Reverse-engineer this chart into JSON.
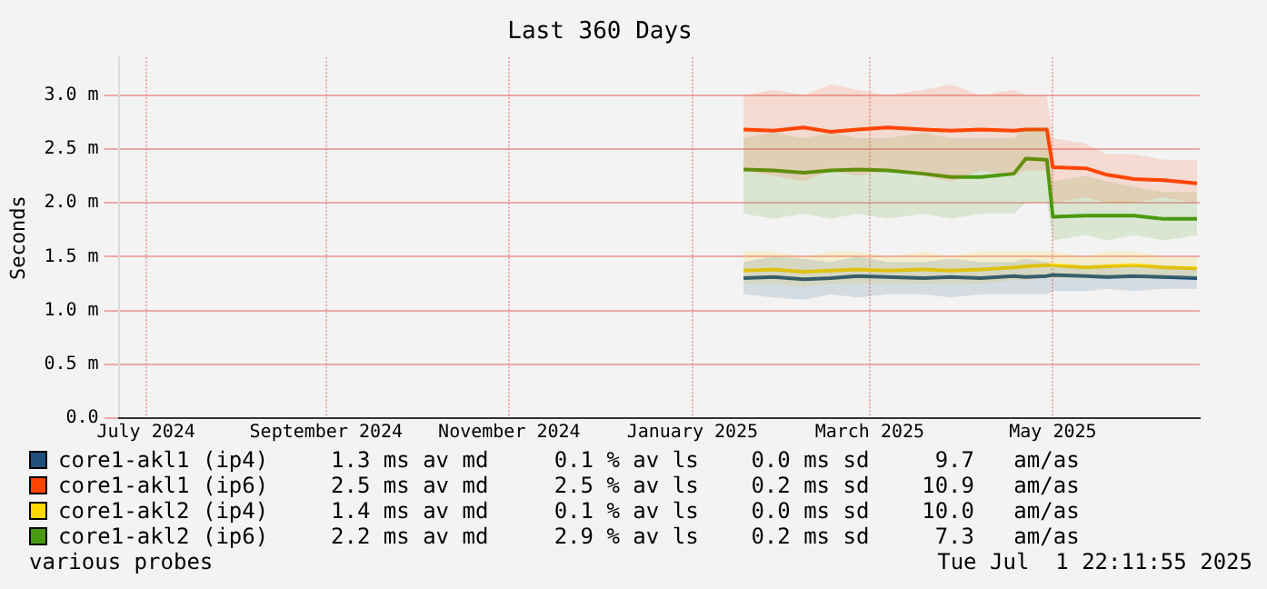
{
  "chart_data": {
    "type": "line",
    "title": "Last 360 Days",
    "ylabel": "Seconds",
    "xlim": [
      "2024-07-06T22:00",
      "2025-07-01T22:00"
    ],
    "xticks": [
      {
        "value": "2024-07-16",
        "label": "July 2024"
      },
      {
        "value": "2024-09-14",
        "label": "September 2024"
      },
      {
        "value": "2024-11-14",
        "label": "November 2024"
      },
      {
        "value": "2025-01-14",
        "label": "January 2025"
      },
      {
        "value": "2025-03-14",
        "label": "March 2025"
      },
      {
        "value": "2025-05-14",
        "label": "May 2025"
      }
    ],
    "ylim": [
      0,
      3.35
    ],
    "yticks": [
      {
        "value": 0,
        "label": "0.0"
      },
      {
        "value": 0.5,
        "label": "0.5 m"
      },
      {
        "value": 1,
        "label": "1.0 m"
      },
      {
        "value": 1.5,
        "label": "1.5 m"
      },
      {
        "value": 2,
        "label": "2.0 m"
      },
      {
        "value": 2.5,
        "label": "2.5 m"
      },
      {
        "value": 3,
        "label": "3.0 m"
      }
    ],
    "grid": true,
    "legend": "bottom",
    "x": [
      "2025-01-31",
      "2025-02-10",
      "2025-02-20",
      "2025-03-01",
      "2025-03-10",
      "2025-03-20",
      "2025-04-01",
      "2025-04-10",
      "2025-04-20",
      "2025-05-01",
      "2025-05-05",
      "2025-05-12",
      "2025-05-14",
      "2025-05-25",
      "2025-06-01",
      "2025-06-10",
      "2025-06-20",
      "2025-07-01"
    ],
    "series": [
      {
        "name": "core1-akl1 (ip4)",
        "color": "#1f4f7a",
        "values": [
          1.3,
          1.31,
          1.29,
          1.3,
          1.32,
          1.31,
          1.3,
          1.31,
          1.3,
          1.32,
          1.31,
          1.32,
          1.33,
          1.32,
          1.31,
          1.32,
          1.31,
          1.3
        ],
        "lower": [
          1.15,
          1.12,
          1.1,
          1.15,
          1.12,
          1.15,
          1.15,
          1.12,
          1.15,
          1.15,
          1.15,
          1.15,
          1.18,
          1.18,
          1.2,
          1.18,
          1.2,
          1.2
        ],
        "upper": [
          1.45,
          1.5,
          1.48,
          1.45,
          1.5,
          1.45,
          1.45,
          1.48,
          1.45,
          1.45,
          1.48,
          1.45,
          1.42,
          1.42,
          1.42,
          1.42,
          1.42,
          1.4
        ]
      },
      {
        "name": "core1-akl1 (ip6)",
        "color": "#ff4400",
        "values": [
          2.68,
          2.67,
          2.7,
          2.66,
          2.68,
          2.7,
          2.68,
          2.67,
          2.68,
          2.67,
          2.68,
          2.68,
          2.33,
          2.32,
          2.26,
          2.22,
          2.21,
          2.18
        ],
        "lower": [
          2.3,
          2.25,
          2.2,
          2.3,
          2.25,
          2.3,
          2.25,
          2.2,
          2.3,
          2.25,
          2.3,
          2.3,
          2.0,
          2.05,
          2.0,
          2.0,
          2.05,
          2.0
        ],
        "upper": [
          3.0,
          3.05,
          3.0,
          3.1,
          3.05,
          3.0,
          3.05,
          3.1,
          3.0,
          3.05,
          3.0,
          3.0,
          2.6,
          2.55,
          2.45,
          2.45,
          2.4,
          2.4
        ]
      },
      {
        "name": "core1-akl2 (ip4)",
        "color": "#ffd700",
        "values": [
          1.37,
          1.38,
          1.36,
          1.37,
          1.38,
          1.37,
          1.38,
          1.37,
          1.38,
          1.4,
          1.41,
          1.42,
          1.42,
          1.4,
          1.41,
          1.42,
          1.4,
          1.39
        ],
        "lower": [
          1.25,
          1.25,
          1.22,
          1.25,
          1.25,
          1.25,
          1.25,
          1.25,
          1.25,
          1.28,
          1.28,
          1.3,
          1.3,
          1.3,
          1.3,
          1.3,
          1.3,
          1.3
        ],
        "upper": [
          1.55,
          1.55,
          1.5,
          1.55,
          1.55,
          1.5,
          1.55,
          1.5,
          1.55,
          1.55,
          1.55,
          1.55,
          1.55,
          1.5,
          1.55,
          1.55,
          1.5,
          1.5
        ]
      },
      {
        "name": "core1-akl2 (ip6)",
        "color": "#4a9a10",
        "values": [
          2.31,
          2.3,
          2.28,
          2.3,
          2.31,
          2.3,
          2.27,
          2.24,
          2.24,
          2.27,
          2.41,
          2.4,
          1.87,
          1.88,
          1.88,
          1.88,
          1.85,
          1.85
        ],
        "lower": [
          1.9,
          1.85,
          1.9,
          1.85,
          1.9,
          1.85,
          1.9,
          1.85,
          1.9,
          1.9,
          2.0,
          2.0,
          1.65,
          1.7,
          1.65,
          1.7,
          1.65,
          1.7
        ],
        "upper": [
          2.6,
          2.65,
          2.6,
          2.65,
          2.6,
          2.6,
          2.65,
          2.6,
          2.6,
          2.6,
          2.7,
          2.7,
          2.2,
          2.25,
          2.2,
          2.15,
          2.1,
          2.1
        ]
      }
    ],
    "annotations": [
      "1.3 ms av md     0.1 % av ls    0.0 ms sd     9.7   am/as",
      "2.5 ms av md     2.5 % av ls    0.2 ms sd    10.9   am/as",
      "1.4 ms av md     0.1 % av ls    0.0 ms sd    10.0   am/as",
      "2.2 ms av md     2.9 % av ls    0.2 ms sd     7.3   am/as",
      "various probes",
      "Tue Jul  1 22:11:55 2025"
    ]
  }
}
